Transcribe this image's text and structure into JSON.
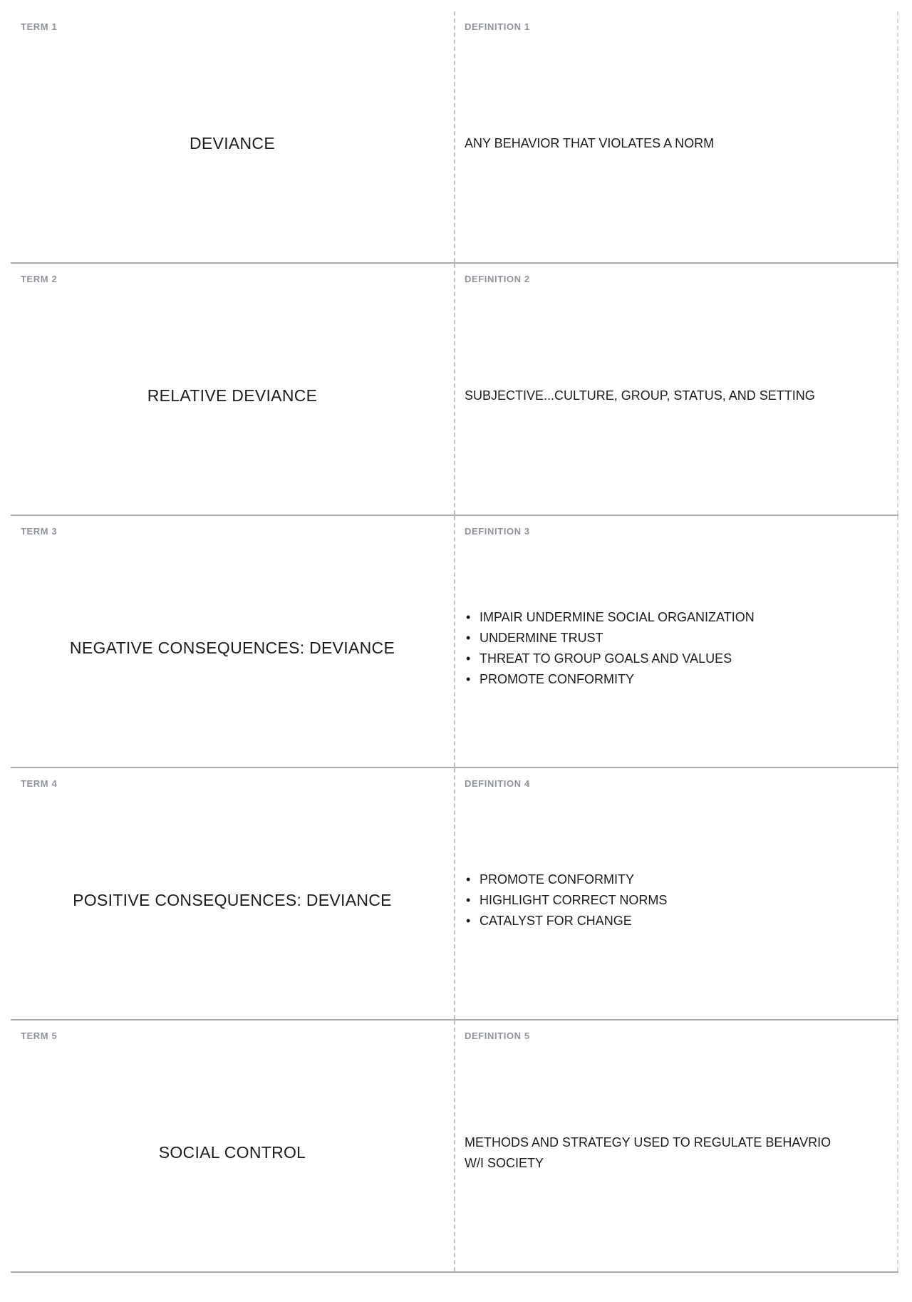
{
  "sheet": {
    "rows": [
      {
        "term_label": "TERM 1",
        "term": "DEVIANCE",
        "definition_label": "DEFINITION 1",
        "definition": "ANY BEHAVIOR THAT VIOLATES A NORM"
      },
      {
        "term_label": "TERM 2",
        "term": "RELATIVE DEVIANCE",
        "definition_label": "DEFINITION 2",
        "definition": "SUBJECTIVE...CULTURE, GROUP, STATUS, AND SETTING"
      },
      {
        "term_label": "TERM 3",
        "term": "NEGATIVE CONSEQUENCES: DEVIANCE",
        "definition_label": "DEFINITION 3",
        "bullets": [
          "IMPAIR UNDERMINE SOCIAL ORGANIZATION",
          "UNDERMINE TRUST",
          "THREAT TO GROUP GOALS AND VALUES",
          "PROMOTE CONFORMITY"
        ]
      },
      {
        "term_label": "TERM 4",
        "term": "POSITIVE CONSEQUENCES: DEVIANCE",
        "definition_label": "DEFINITION 4",
        "bullets": [
          "PROMOTE CONFORMITY",
          "HIGHLIGHT CORRECT NORMS",
          "CATALYST FOR CHANGE"
        ]
      },
      {
        "term_label": "TERM 5",
        "term": "SOCIAL CONTROL",
        "definition_label": "DEFINITION 5",
        "definition": "METHODS AND STRATEGY USED TO REGULATE BEHAVRIO\nW/I SOCIETY"
      }
    ],
    "colors": {
      "row_border": "#a9abb0",
      "column_divider_dashed": "#c4c5c9",
      "outer_edge_dashed": "#d7d8db",
      "label_text": "#8e939c",
      "body_text": "#1b1b1b"
    }
  }
}
